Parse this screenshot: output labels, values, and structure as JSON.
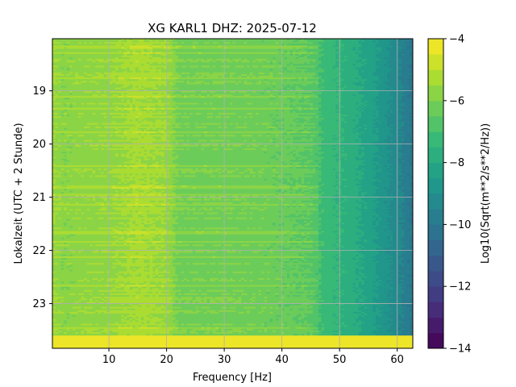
{
  "chart_data": {
    "type": "heatmap",
    "title": "XG KARL1  DHZ: 2025-07-12",
    "xlabel": "Frequency [Hz]",
    "ylabel": "Lokalzeit (UTC + 2 Stunde)",
    "colorbar_label": "Log10(Sqrt(m**2/s**2/Hz))",
    "colormap": "viridis",
    "xlim": [
      0.2,
      62.7
    ],
    "ylim": [
      23.84,
      18.02
    ],
    "x_ticks": [
      10,
      20,
      30,
      40,
      50,
      60
    ],
    "x_tick_labels": [
      "10",
      "20",
      "30",
      "40",
      "50",
      "60"
    ],
    "y_ticks": [
      19,
      20,
      21,
      22,
      23
    ],
    "y_tick_labels": [
      "19",
      "20",
      "21",
      "22",
      "23"
    ],
    "color_range": [
      -14,
      -4
    ],
    "colorbar_ticks": [
      -4,
      -6,
      -8,
      -10,
      -12,
      -14
    ],
    "colorbar_tick_labels": [
      "−4",
      "−6",
      "−8",
      "−10",
      "−12",
      "−14"
    ],
    "colorbar_levels": 20,
    "grid": true,
    "spectral_profile": {
      "frequency_hz": [
        0.5,
        2,
        5,
        10,
        15,
        20,
        22,
        25,
        30,
        35,
        40,
        45,
        47,
        50,
        55,
        60,
        62.5
      ],
      "log10_amplitude": [
        -5.6,
        -5.9,
        -5.8,
        -5.7,
        -5.4,
        -5.6,
        -6.2,
        -6.2,
        -6.2,
        -6.3,
        -6.4,
        -6.6,
        -7.1,
        -7.5,
        -8.2,
        -9.3,
        -10.0
      ]
    },
    "saturated_band": {
      "from_hour": 23.6,
      "to_hour": 23.84,
      "value": -4
    }
  }
}
